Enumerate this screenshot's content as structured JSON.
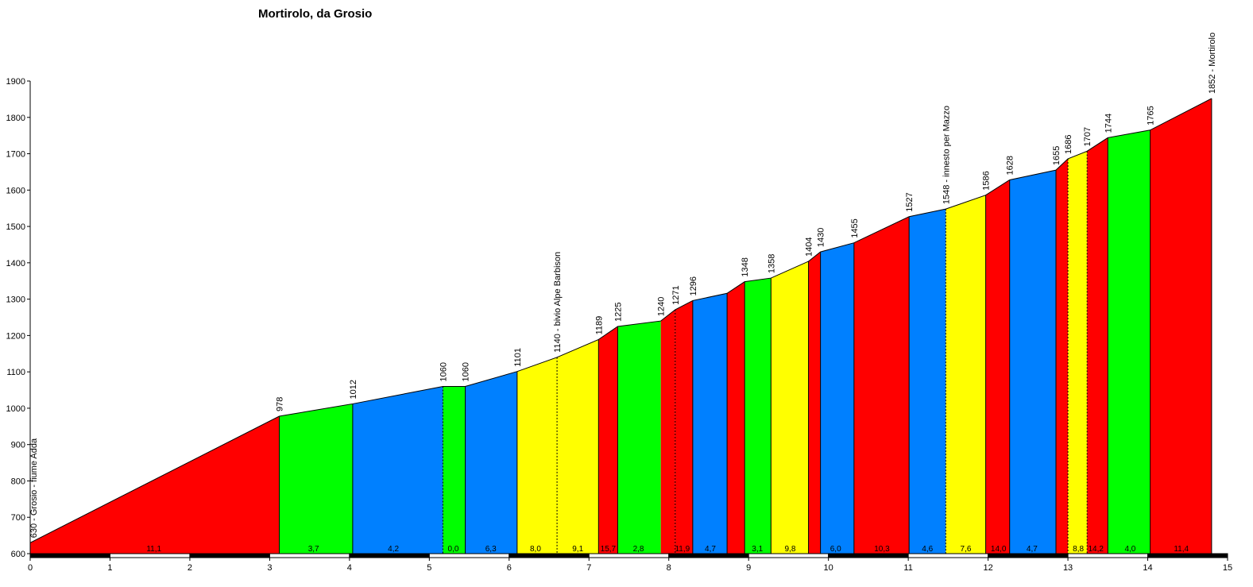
{
  "chart_data": {
    "type": "area",
    "title": "Mortirolo, da Grosio",
    "xlabel": "",
    "ylabel": "",
    "xlim": [
      0,
      15
    ],
    "ylim": [
      600,
      1900
    ],
    "x_ticks": [
      0,
      1,
      2,
      3,
      4,
      5,
      6,
      7,
      8,
      9,
      10,
      11,
      12,
      13,
      14,
      15
    ],
    "y_ticks": [
      600,
      700,
      800,
      900,
      1000,
      1100,
      1200,
      1300,
      1400,
      1500,
      1600,
      1700,
      1800,
      1900
    ],
    "grid": false,
    "colors": {
      "red": "#ff0000",
      "green": "#00ff00",
      "blue": "#0080ff",
      "yellow": "#ffff00"
    },
    "profile": [
      {
        "x": 0,
        "y": 630
      },
      {
        "x": 3.12,
        "y": 978
      },
      {
        "x": 4.04,
        "y": 1012
      },
      {
        "x": 5.17,
        "y": 1060
      },
      {
        "x": 5.45,
        "y": 1060
      },
      {
        "x": 6.1,
        "y": 1101
      },
      {
        "x": 6.6,
        "y": 1140
      },
      {
        "x": 7.12,
        "y": 1189
      },
      {
        "x": 7.36,
        "y": 1225
      },
      {
        "x": 7.9,
        "y": 1240
      },
      {
        "x": 8.08,
        "y": 1271
      },
      {
        "x": 8.3,
        "y": 1296
      },
      {
        "x": 8.73,
        "y": 1316
      },
      {
        "x": 8.95,
        "y": 1348
      },
      {
        "x": 9.28,
        "y": 1358
      },
      {
        "x": 9.75,
        "y": 1404
      },
      {
        "x": 9.9,
        "y": 1430
      },
      {
        "x": 10.32,
        "y": 1455
      },
      {
        "x": 11.01,
        "y": 1527
      },
      {
        "x": 11.47,
        "y": 1548
      },
      {
        "x": 11.97,
        "y": 1586
      },
      {
        "x": 12.27,
        "y": 1628
      },
      {
        "x": 12.85,
        "y": 1655
      },
      {
        "x": 13.0,
        "y": 1686
      },
      {
        "x": 13.24,
        "y": 1707
      },
      {
        "x": 13.5,
        "y": 1744
      },
      {
        "x": 14.03,
        "y": 1765
      },
      {
        "x": 14.8,
        "y": 1852
      }
    ],
    "segments": [
      {
        "from": 0,
        "to": 3.12,
        "color": "red",
        "gradient": "11,1",
        "label_x": 1.55
      },
      {
        "from": 3.12,
        "to": 4.04,
        "color": "green",
        "gradient": "3,7",
        "label_x": 3.55
      },
      {
        "from": 4.04,
        "to": 5.17,
        "color": "blue",
        "gradient": "4,2",
        "label_x": 4.55
      },
      {
        "from": 5.17,
        "to": 5.45,
        "color": "green",
        "gradient": "0,0",
        "label_x": 5.3
      },
      {
        "from": 5.45,
        "to": 6.1,
        "color": "blue",
        "gradient": "6,3",
        "label_x": 5.77
      },
      {
        "from": 6.1,
        "to": 6.6,
        "color": "yellow",
        "gradient": "8,0",
        "label_x": 6.33
      },
      {
        "from": 6.6,
        "to": 7.12,
        "color": "yellow",
        "gradient": "9,1",
        "label_x": 6.86
      },
      {
        "from": 7.12,
        "to": 7.36,
        "color": "red",
        "gradient": "15,7",
        "label_x": 7.24
      },
      {
        "from": 7.36,
        "to": 7.9,
        "color": "green",
        "gradient": "2,8",
        "label_x": 7.62
      },
      {
        "from": 7.9,
        "to": 8.08,
        "color": "red",
        "gradient": ""
      },
      {
        "from": 8.08,
        "to": 8.3,
        "color": "red",
        "gradient": "11,9",
        "label_x": 8.17
      },
      {
        "from": 8.3,
        "to": 8.73,
        "color": "blue",
        "gradient": "4,7",
        "label_x": 8.52
      },
      {
        "from": 8.73,
        "to": 8.95,
        "color": "red",
        "gradient": ""
      },
      {
        "from": 8.95,
        "to": 9.28,
        "color": "green",
        "gradient": "3,1",
        "label_x": 9.11
      },
      {
        "from": 9.28,
        "to": 9.75,
        "color": "yellow",
        "gradient": "9,8",
        "label_x": 9.52
      },
      {
        "from": 9.75,
        "to": 9.9,
        "color": "red",
        "gradient": ""
      },
      {
        "from": 9.9,
        "to": 10.32,
        "color": "blue",
        "gradient": "6,0",
        "label_x": 10.09
      },
      {
        "from": 10.32,
        "to": 11.01,
        "color": "red",
        "gradient": "10,3",
        "label_x": 10.67
      },
      {
        "from": 11.01,
        "to": 11.47,
        "color": "blue",
        "gradient": "4,6",
        "label_x": 11.24
      },
      {
        "from": 11.47,
        "to": 11.97,
        "color": "yellow",
        "gradient": "7,6",
        "label_x": 11.72
      },
      {
        "from": 11.97,
        "to": 12.27,
        "color": "red",
        "gradient": "14,0",
        "label_x": 12.13
      },
      {
        "from": 12.27,
        "to": 12.85,
        "color": "blue",
        "gradient": "4,7",
        "label_x": 12.55
      },
      {
        "from": 12.85,
        "to": 13.0,
        "color": "red",
        "gradient": ""
      },
      {
        "from": 13.0,
        "to": 13.24,
        "color": "yellow",
        "gradient": "8,8",
        "label_x": 13.13
      },
      {
        "from": 13.24,
        "to": 13.5,
        "color": "red",
        "gradient": "14,2",
        "label_x": 13.35
      },
      {
        "from": 13.5,
        "to": 14.03,
        "color": "green",
        "gradient": "4,0",
        "label_x": 13.78
      },
      {
        "from": 14.03,
        "to": 14.8,
        "color": "red",
        "gradient": "11,4",
        "label_x": 14.42
      }
    ],
    "solid_dividers": [
      3.12,
      4.04,
      5.45,
      6.1,
      7.12,
      7.36,
      8.3,
      8.73,
      8.95,
      9.28,
      9.75,
      9.9,
      10.32,
      11.01,
      11.97,
      12.27,
      12.85,
      13.5,
      14.03,
      14.8
    ],
    "dashed_dividers": [
      5.17,
      6.6,
      8.08,
      11.47,
      13.0,
      13.24
    ],
    "point_labels": [
      {
        "x": 3.12,
        "y": 978,
        "text": "978"
      },
      {
        "x": 4.04,
        "y": 1012,
        "text": "1012"
      },
      {
        "x": 5.17,
        "y": 1060,
        "text": "1060"
      },
      {
        "x": 5.45,
        "y": 1060,
        "text": "1060"
      },
      {
        "x": 6.1,
        "y": 1101,
        "text": "1101"
      },
      {
        "x": 6.6,
        "y": 1140,
        "text": "1140 - bivio Alpe Barbison"
      },
      {
        "x": 7.12,
        "y": 1189,
        "text": "1189"
      },
      {
        "x": 7.36,
        "y": 1225,
        "text": "1225"
      },
      {
        "x": 7.9,
        "y": 1240,
        "text": "1240"
      },
      {
        "x": 8.08,
        "y": 1271,
        "text": "1271"
      },
      {
        "x": 8.3,
        "y": 1296,
        "text": "1296"
      },
      {
        "x": 8.95,
        "y": 1348,
        "text": "1348"
      },
      {
        "x": 9.28,
        "y": 1358,
        "text": "1358"
      },
      {
        "x": 9.75,
        "y": 1404,
        "text": "1404"
      },
      {
        "x": 9.9,
        "y": 1430,
        "text": "1430"
      },
      {
        "x": 10.32,
        "y": 1455,
        "text": "1455"
      },
      {
        "x": 11.01,
        "y": 1527,
        "text": "1527"
      },
      {
        "x": 11.47,
        "y": 1548,
        "text": "1548 - innesto per Mazzo"
      },
      {
        "x": 11.97,
        "y": 1586,
        "text": "1586"
      },
      {
        "x": 12.27,
        "y": 1628,
        "text": "1628"
      },
      {
        "x": 12.85,
        "y": 1655,
        "text": "1655"
      },
      {
        "x": 13.0,
        "y": 1686,
        "text": "1686"
      },
      {
        "x": 13.24,
        "y": 1707,
        "text": "1707"
      },
      {
        "x": 13.5,
        "y": 1744,
        "text": "1744"
      },
      {
        "x": 14.03,
        "y": 1765,
        "text": "1765"
      },
      {
        "x": 14.8,
        "y": 1852,
        "text": "1852 - Mortirolo"
      }
    ],
    "start_label": {
      "x": 0,
      "y": 630,
      "text": "630 - Grosio - fiume Adda"
    }
  }
}
